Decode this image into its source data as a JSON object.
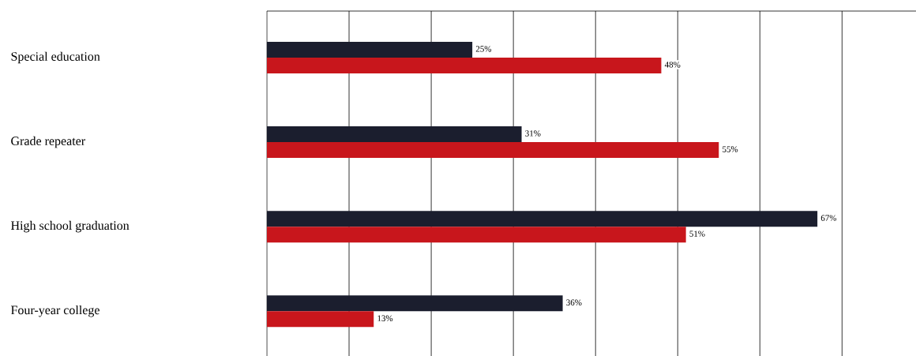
{
  "chart_data": {
    "type": "bar",
    "orientation": "horizontal",
    "categories": [
      "Special education",
      "Grade repeater",
      "High school graduation",
      "Four-year college"
    ],
    "series": [
      {
        "color": "#1b1e2e",
        "values": [
          25,
          31,
          67,
          36
        ],
        "value_labels": [
          "25%",
          "31%",
          "67%",
          "36%"
        ]
      },
      {
        "color": "#c8161c",
        "values": [
          48,
          55,
          51,
          13
        ],
        "value_labels": [
          "48%",
          "55%",
          "51%",
          "13%"
        ]
      }
    ],
    "xlim": [
      0,
      79
    ],
    "xticks": [
      {
        "value": 0,
        "label": null
      },
      {
        "value": 10,
        "label": null
      },
      {
        "value": 20,
        "label": null
      },
      {
        "value": 30,
        "label": null
      },
      {
        "value": 40,
        "label": null
      },
      {
        "value": 50,
        "label": null
      },
      {
        "value": 60,
        "label": null
      },
      {
        "value": 70,
        "label": null
      }
    ],
    "grid": "x",
    "tick_labels": "y"
  }
}
